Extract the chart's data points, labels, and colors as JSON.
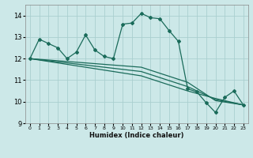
{
  "title": "",
  "xlabel": "Humidex (Indice chaleur)",
  "ylabel": "",
  "xlim": [
    -0.5,
    23.5
  ],
  "ylim": [
    9,
    14.5
  ],
  "yticks": [
    9,
    10,
    11,
    12,
    13,
    14
  ],
  "xticks": [
    0,
    1,
    2,
    3,
    4,
    5,
    6,
    7,
    8,
    9,
    10,
    11,
    12,
    13,
    14,
    15,
    16,
    17,
    18,
    19,
    20,
    21,
    22,
    23
  ],
  "bg_color": "#cce8e8",
  "grid_color": "#aacfcf",
  "line_color": "#1a6b5a",
  "series": [
    [
      0,
      12.0
    ],
    [
      1,
      12.9
    ],
    [
      2,
      12.7
    ],
    [
      3,
      12.5
    ],
    [
      4,
      12.0
    ],
    [
      5,
      12.3
    ],
    [
      6,
      13.1
    ],
    [
      7,
      12.4
    ],
    [
      8,
      12.1
    ],
    [
      9,
      12.0
    ],
    [
      10,
      13.6
    ],
    [
      11,
      13.65
    ],
    [
      12,
      14.1
    ],
    [
      13,
      13.9
    ],
    [
      14,
      13.85
    ],
    [
      15,
      13.3
    ],
    [
      16,
      12.8
    ],
    [
      17,
      10.6
    ],
    [
      18,
      10.45
    ],
    [
      19,
      9.95
    ],
    [
      20,
      9.5
    ],
    [
      21,
      10.2
    ],
    [
      22,
      10.5
    ],
    [
      23,
      9.85
    ]
  ],
  "line2": [
    [
      0,
      12.0
    ],
    [
      12,
      11.6
    ],
    [
      17,
      10.9
    ],
    [
      20,
      10.05
    ],
    [
      23,
      9.85
    ]
  ],
  "line3": [
    [
      0,
      12.0
    ],
    [
      12,
      11.4
    ],
    [
      17,
      10.7
    ],
    [
      20,
      10.1
    ],
    [
      23,
      9.85
    ]
  ],
  "line4": [
    [
      0,
      12.0
    ],
    [
      12,
      11.2
    ],
    [
      17,
      10.5
    ],
    [
      20,
      10.15
    ],
    [
      23,
      9.85
    ]
  ]
}
